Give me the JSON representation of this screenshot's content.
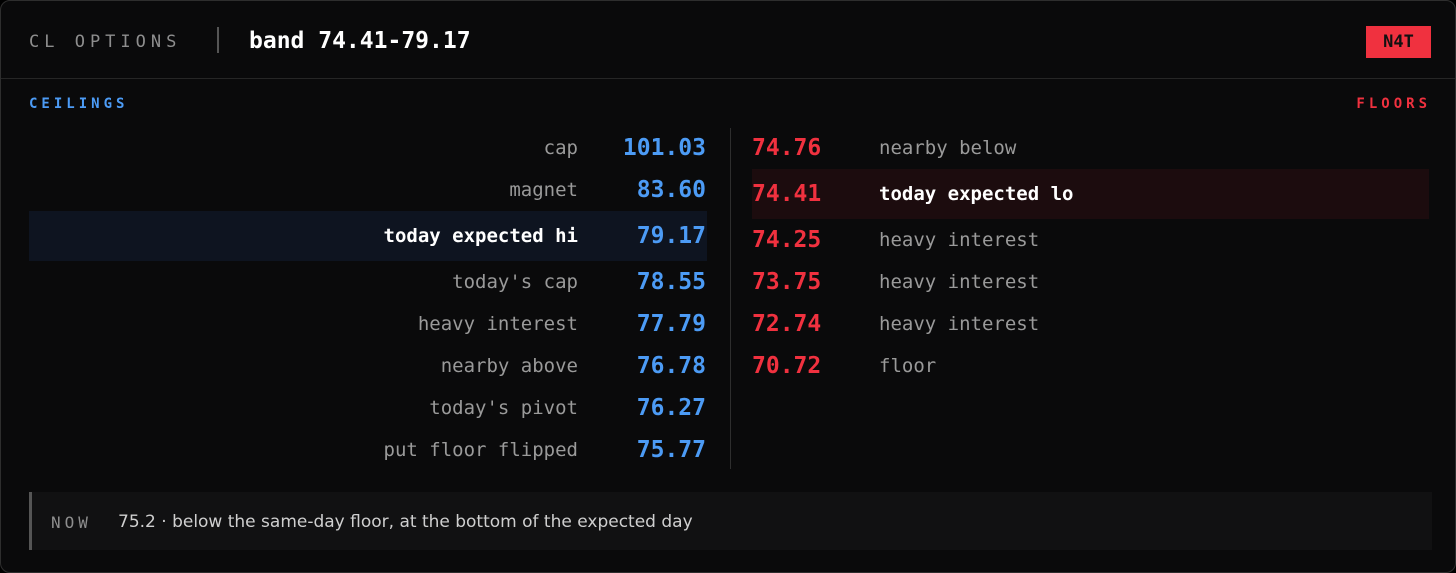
{
  "header": {
    "label": "CL OPTIONS",
    "title": "band 74.41-79.17",
    "badge": "N4T"
  },
  "ceilings": {
    "title": "CEILINGS",
    "rows": [
      {
        "label": "cap",
        "value": "101.03"
      },
      {
        "label": "magnet",
        "value": "83.60"
      },
      {
        "label": "today expected hi",
        "value": "79.17",
        "highlight": true
      },
      {
        "label": "today's cap",
        "value": "78.55"
      },
      {
        "label": "heavy interest",
        "value": "77.79"
      },
      {
        "label": "nearby above",
        "value": "76.78"
      },
      {
        "label": "today's pivot",
        "value": "76.27"
      },
      {
        "label": "put floor flipped",
        "value": "75.77"
      }
    ]
  },
  "floors": {
    "title": "FLOORS",
    "rows": [
      {
        "label": "nearby below",
        "value": "74.76"
      },
      {
        "label": "today expected lo",
        "value": "74.41",
        "highlight": true
      },
      {
        "label": "heavy interest",
        "value": "74.25"
      },
      {
        "label": "heavy interest",
        "value": "73.75"
      },
      {
        "label": "heavy interest",
        "value": "72.74"
      },
      {
        "label": "floor",
        "value": "70.72"
      }
    ]
  },
  "footer": {
    "label": "NOW",
    "text": "75.2 · below the same-day floor, at the bottom of the expected day"
  }
}
